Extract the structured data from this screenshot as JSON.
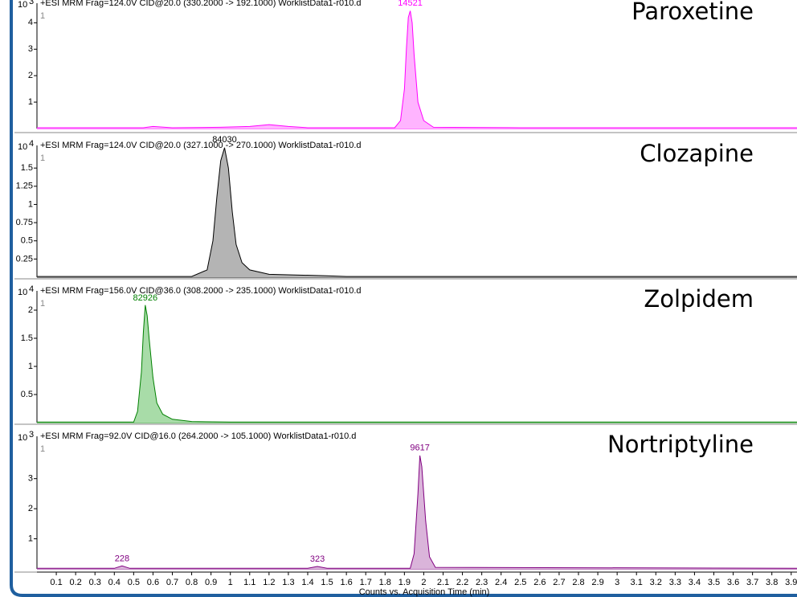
{
  "chart_data": [
    {
      "type": "line",
      "title": "+ESI MRM Frag=124.0V CID@20.0 (330.2000 -> 192.1000) WorklistData1-r010.d",
      "compound": "Paroxetine",
      "scale_base": "10",
      "scale_exp": 3,
      "peak_id": "1",
      "color": "#ff00ff",
      "fill": "#ffb4ff",
      "x": [
        0,
        0.3,
        0.55,
        0.6,
        0.7,
        0.95,
        1.1,
        1.2,
        1.3,
        1.4,
        1.85,
        1.88,
        1.9,
        1.91,
        1.92,
        1.93,
        1.94,
        1.95,
        1.97,
        2.0,
        2.05,
        2.5,
        3.93
      ],
      "values": [
        0.03,
        0.03,
        0.03,
        0.08,
        0.03,
        0.05,
        0.08,
        0.15,
        0.08,
        0.03,
        0.03,
        0.3,
        1.5,
        3.0,
        4.2,
        4.45,
        4.0,
        2.8,
        1.0,
        0.3,
        0.05,
        0.03,
        0.03
      ],
      "ylim": [
        0,
        4.8
      ],
      "yticks": [
        1,
        2,
        3,
        4
      ],
      "annotations": [
        {
          "text": "14521",
          "x": 1.93,
          "y": 4.5
        }
      ]
    },
    {
      "type": "line",
      "title": "+ESI MRM Frag=124.0V CID@20.0 (327.1000 -> 270.1000) WorklistData1-r010.d",
      "compound": "Clozapine",
      "scale_base": "10",
      "scale_exp": 4,
      "peak_id": "1",
      "color": "#000000",
      "fill": "#b4b4b4",
      "x": [
        0,
        0.8,
        0.88,
        0.91,
        0.93,
        0.95,
        0.97,
        0.99,
        1.01,
        1.03,
        1.06,
        1.1,
        1.2,
        1.5,
        1.6,
        3.93
      ],
      "values": [
        0.01,
        0.01,
        0.1,
        0.5,
        1.1,
        1.6,
        1.78,
        1.5,
        0.9,
        0.45,
        0.2,
        0.1,
        0.04,
        0.02,
        0.01,
        0.01
      ],
      "ylim": [
        0,
        1.8
      ],
      "yticks": [
        0.25,
        0.5,
        0.75,
        1,
        1.25,
        1.5
      ],
      "annotations": [
        {
          "text": "84030",
          "x": 0.97,
          "y": 1.8
        }
      ]
    },
    {
      "type": "line",
      "title": "+ESI MRM Frag=156.0V CID@36.0 (308.2000 -> 235.1000) WorklistData1-r010.d",
      "compound": "Zolpidem",
      "scale_base": "10",
      "scale_exp": 4,
      "peak_id": "1",
      "color": "#008000",
      "fill": "#a8dca8",
      "x": [
        0,
        0.5,
        0.52,
        0.54,
        0.55,
        0.56,
        0.57,
        0.58,
        0.6,
        0.62,
        0.65,
        0.7,
        0.8,
        1.0,
        3.93
      ],
      "values": [
        0.01,
        0.01,
        0.2,
        0.9,
        1.6,
        2.09,
        1.9,
        1.5,
        0.8,
        0.35,
        0.15,
        0.06,
        0.02,
        0.01,
        0.01
      ],
      "ylim": [
        0,
        2.2
      ],
      "yticks": [
        0.5,
        1,
        1.5,
        2
      ],
      "annotations": [
        {
          "text": "82926",
          "x": 0.56,
          "y": 2.1
        }
      ]
    },
    {
      "type": "line",
      "title": "+ESI MRM Frag=92.0V CID@16.0 (264.2000 -> 105.1000) WorklistData1-r010.d",
      "compound": "Nortriptyline",
      "scale_base": "10",
      "scale_exp": 3,
      "peak_id": "1",
      "color": "#800080",
      "fill": "#dab4da",
      "x": [
        0,
        0.4,
        0.44,
        0.48,
        1.4,
        1.45,
        1.5,
        1.93,
        1.95,
        1.97,
        1.98,
        1.99,
        2.01,
        2.03,
        2.06,
        3.93
      ],
      "values": [
        0.02,
        0.02,
        0.1,
        0.02,
        0.02,
        0.08,
        0.02,
        0.02,
        0.5,
        2.5,
        3.77,
        3.4,
        1.6,
        0.4,
        0.05,
        0.02
      ],
      "ylim": [
        0,
        3.9
      ],
      "yticks": [
        1,
        2,
        3
      ],
      "annotations": [
        {
          "text": "9617",
          "x": 1.98,
          "y": 3.8
        },
        {
          "text": "228",
          "x": 0.44,
          "y": 0.12
        },
        {
          "text": "323",
          "x": 1.45,
          "y": 0.1
        }
      ],
      "xlim": [
        0,
        3.93
      ],
      "xticks": [
        0.1,
        0.2,
        0.3,
        0.4,
        0.5,
        0.6,
        0.7,
        0.8,
        0.9,
        1,
        1.1,
        1.2,
        1.3,
        1.4,
        1.5,
        1.6,
        1.7,
        1.8,
        1.9,
        2,
        2.1,
        2.2,
        2.3,
        2.4,
        2.5,
        2.6,
        2.7,
        2.8,
        2.9,
        3,
        3.1,
        3.2,
        3.3,
        3.4,
        3.5,
        3.6,
        3.7,
        3.8,
        3.9
      ],
      "xlabel": "Counts vs. Acquisition Time (min)"
    }
  ]
}
